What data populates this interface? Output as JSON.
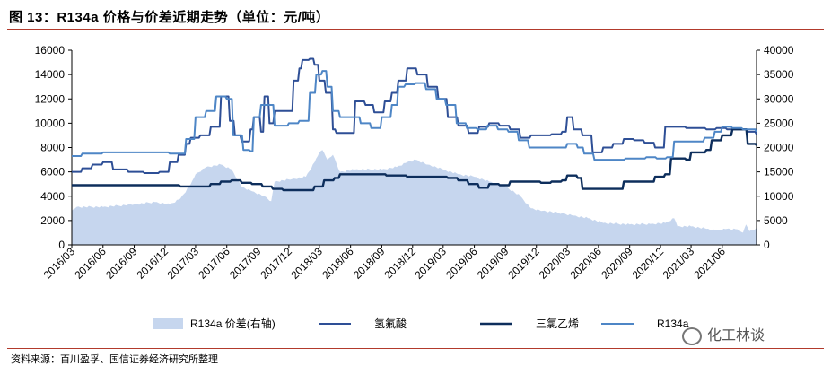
{
  "title": "图 13：R134a 价格与价差近期走势（单位：元/吨）",
  "source": "资料来源：百川盈孚、国信证券经济研究所整理",
  "watermark": "化工林谈",
  "chart_data": {
    "type": "line",
    "left_axis": {
      "ylim": [
        0,
        16000
      ],
      "ticks": [
        "0",
        "2000",
        "4000",
        "6000",
        "8000",
        "10000",
        "12000",
        "14000",
        "16000"
      ]
    },
    "right_axis": {
      "ylim": [
        0,
        40000
      ],
      "ticks": [
        "0",
        "5000",
        "10000",
        "15000",
        "20000",
        "25000",
        "30000",
        "35000",
        "40000"
      ]
    },
    "x_range": [
      "2016-03-01",
      "2021-09-10"
    ],
    "x_ticks": [
      "2016/03",
      "2016/06",
      "2016/09",
      "2016/12",
      "2017/03",
      "2017/06",
      "2017/09",
      "2017/12",
      "2018/03",
      "2018/06",
      "2018/09",
      "2018/12",
      "2019/03",
      "2019/06",
      "2019/09",
      "2019/12",
      "2020/03",
      "2020/06",
      "2020/09",
      "2020/12",
      "2021/03",
      "2021/06"
    ],
    "colors": {
      "spread": "#c6d6ee",
      "hf": "#2e4f96",
      "tce": "#0d2e5c",
      "r134a": "#4e86c6"
    },
    "series": [
      {
        "name": "R134a 价差(右轴)",
        "axis": "right",
        "style": "area",
        "points": [
          [
            "2016-03-01",
            7000
          ],
          [
            "2016-03-15",
            7800
          ],
          [
            "2016-06-01",
            7800
          ],
          [
            "2016-09-01",
            8300
          ],
          [
            "2016-11-01",
            8800
          ],
          [
            "2016-12-15",
            8300
          ],
          [
            "2017-01-15",
            9500
          ],
          [
            "2017-02-15",
            12500
          ],
          [
            "2017-03-01",
            14500
          ],
          [
            "2017-04-01",
            16000
          ],
          [
            "2017-05-15",
            16500
          ],
          [
            "2017-06-15",
            15500
          ],
          [
            "2017-07-15",
            12000
          ],
          [
            "2017-08-15",
            11000
          ],
          [
            "2017-09-20",
            10000
          ],
          [
            "2017-10-10",
            9000
          ],
          [
            "2017-10-20",
            13000
          ],
          [
            "2017-12-10",
            13500
          ],
          [
            "2018-01-20",
            14000
          ],
          [
            "2018-02-15",
            17000
          ],
          [
            "2018-03-01",
            19000
          ],
          [
            "2018-03-10",
            19500
          ],
          [
            "2018-03-25",
            17500
          ],
          [
            "2018-04-10",
            18500
          ],
          [
            "2018-05-01",
            15000
          ],
          [
            "2018-06-15",
            15500
          ],
          [
            "2018-09-01",
            15500
          ],
          [
            "2018-10-15",
            16000
          ],
          [
            "2018-11-15",
            17000
          ],
          [
            "2018-12-10",
            17500
          ],
          [
            "2019-01-15",
            16500
          ],
          [
            "2019-03-01",
            15500
          ],
          [
            "2019-04-15",
            14500
          ],
          [
            "2019-06-01",
            14000
          ],
          [
            "2019-07-15",
            13000
          ],
          [
            "2019-09-01",
            12000
          ],
          [
            "2019-10-15",
            10000
          ],
          [
            "2019-11-15",
            7500
          ],
          [
            "2019-12-20",
            7000
          ],
          [
            "2020-02-15",
            6500
          ],
          [
            "2020-03-20",
            6000
          ],
          [
            "2020-05-01",
            5500
          ],
          [
            "2020-06-15",
            4500
          ],
          [
            "2020-09-01",
            4200
          ],
          [
            "2020-11-01",
            4300
          ],
          [
            "2020-12-15",
            4500
          ],
          [
            "2021-01-10",
            5500
          ],
          [
            "2021-01-20",
            3800
          ],
          [
            "2021-03-01",
            3800
          ],
          [
            "2021-04-15",
            3300
          ],
          [
            "2021-05-15",
            3000
          ],
          [
            "2021-06-15",
            3300
          ],
          [
            "2021-07-15",
            3200
          ],
          [
            "2021-08-01",
            2500
          ],
          [
            "2021-08-10",
            4200
          ],
          [
            "2021-08-20",
            2800
          ],
          [
            "2021-09-10",
            3500
          ]
        ]
      },
      {
        "name": "氢氟酸",
        "axis": "left",
        "style": "line",
        "points": [
          [
            "2016-03-01",
            6000
          ],
          [
            "2016-04-01",
            6300
          ],
          [
            "2016-05-01",
            6600
          ],
          [
            "2016-06-01",
            6800
          ],
          [
            "2016-07-01",
            6200
          ],
          [
            "2016-08-15",
            6000
          ],
          [
            "2016-10-01",
            5900
          ],
          [
            "2016-11-15",
            6000
          ],
          [
            "2016-12-15",
            6800
          ],
          [
            "2017-01-10",
            7400
          ],
          [
            "2017-02-01",
            8300
          ],
          [
            "2017-02-15",
            8800
          ],
          [
            "2017-03-15",
            9000
          ],
          [
            "2017-04-15",
            9700
          ],
          [
            "2017-05-15",
            12200
          ],
          [
            "2017-06-10",
            10200
          ],
          [
            "2017-06-25",
            9000
          ],
          [
            "2017-07-15",
            8500
          ],
          [
            "2017-08-10",
            9500
          ],
          [
            "2017-08-20",
            10500
          ],
          [
            "2017-09-10",
            9300
          ],
          [
            "2017-09-20",
            12200
          ],
          [
            "2017-10-05",
            10000
          ],
          [
            "2017-10-20",
            11000
          ],
          [
            "2017-11-15",
            11000
          ],
          [
            "2017-12-15",
            13500
          ],
          [
            "2018-01-01",
            14500
          ],
          [
            "2018-01-10",
            15200
          ],
          [
            "2018-02-01",
            15300
          ],
          [
            "2018-02-15",
            14800
          ],
          [
            "2018-03-01",
            13500
          ],
          [
            "2018-03-20",
            12500
          ],
          [
            "2018-04-10",
            9500
          ],
          [
            "2018-04-20",
            9200
          ],
          [
            "2018-06-01",
            9200
          ],
          [
            "2018-06-15",
            11800
          ],
          [
            "2018-07-15",
            11500
          ],
          [
            "2018-08-10",
            10900
          ],
          [
            "2018-09-10",
            11800
          ],
          [
            "2018-10-01",
            12500
          ],
          [
            "2018-10-20",
            13500
          ],
          [
            "2018-11-15",
            14500
          ],
          [
            "2018-12-15",
            14000
          ],
          [
            "2019-01-15",
            13000
          ],
          [
            "2019-02-15",
            12000
          ],
          [
            "2019-03-15",
            10500
          ],
          [
            "2019-04-15",
            9800
          ],
          [
            "2019-05-15",
            9200
          ],
          [
            "2019-06-15",
            9700
          ],
          [
            "2019-07-15",
            10000
          ],
          [
            "2019-08-15",
            9800
          ],
          [
            "2019-09-15",
            9500
          ],
          [
            "2019-10-15",
            8800
          ],
          [
            "2019-11-15",
            9000
          ],
          [
            "2019-12-15",
            9000
          ],
          [
            "2020-01-15",
            9100
          ],
          [
            "2020-02-15",
            9300
          ],
          [
            "2020-03-01",
            10500
          ],
          [
            "2020-03-20",
            9500
          ],
          [
            "2020-04-15",
            9000
          ],
          [
            "2020-05-15",
            7600
          ],
          [
            "2020-06-15",
            8000
          ],
          [
            "2020-07-15",
            8300
          ],
          [
            "2020-08-15",
            8700
          ],
          [
            "2020-09-15",
            8600
          ],
          [
            "2020-10-15",
            8400
          ],
          [
            "2020-11-15",
            8000
          ],
          [
            "2020-12-15",
            9700
          ],
          [
            "2021-01-15",
            9700
          ],
          [
            "2021-02-15",
            9600
          ],
          [
            "2021-03-15",
            9600
          ],
          [
            "2021-04-15",
            9500
          ],
          [
            "2021-05-15",
            9600
          ],
          [
            "2021-06-15",
            9500
          ],
          [
            "2021-07-15",
            9500
          ],
          [
            "2021-08-15",
            9300
          ],
          [
            "2021-09-10",
            9100
          ]
        ]
      },
      {
        "name": "三氯乙烯",
        "axis": "left",
        "style": "line",
        "points": [
          [
            "2016-03-01",
            4900
          ],
          [
            "2016-12-15",
            4900
          ],
          [
            "2017-01-15",
            4800
          ],
          [
            "2017-03-15",
            4800
          ],
          [
            "2017-04-15",
            5000
          ],
          [
            "2017-05-15",
            5200
          ],
          [
            "2017-06-15",
            5300
          ],
          [
            "2017-07-15",
            5100
          ],
          [
            "2017-08-15",
            5000
          ],
          [
            "2017-09-15",
            4800
          ],
          [
            "2017-10-15",
            4600
          ],
          [
            "2017-11-15",
            4500
          ],
          [
            "2017-12-15",
            4500
          ],
          [
            "2018-01-15",
            4500
          ],
          [
            "2018-02-15",
            4800
          ],
          [
            "2018-03-15",
            5300
          ],
          [
            "2018-04-15",
            5500
          ],
          [
            "2018-05-01",
            5800
          ],
          [
            "2018-07-15",
            5800
          ],
          [
            "2018-09-15",
            5700
          ],
          [
            "2018-11-15",
            5600
          ],
          [
            "2019-01-15",
            5600
          ],
          [
            "2019-02-15",
            5600
          ],
          [
            "2019-03-15",
            5500
          ],
          [
            "2019-04-15",
            5300
          ],
          [
            "2019-05-15",
            5000
          ],
          [
            "2019-06-15",
            4700
          ],
          [
            "2019-07-15",
            5000
          ],
          [
            "2019-08-15",
            4900
          ],
          [
            "2019-09-15",
            5200
          ],
          [
            "2019-11-15",
            5200
          ],
          [
            "2019-12-15",
            5100
          ],
          [
            "2020-01-15",
            5200
          ],
          [
            "2020-02-15",
            5300
          ],
          [
            "2020-03-01",
            5700
          ],
          [
            "2020-04-01",
            5500
          ],
          [
            "2020-04-15",
            4600
          ],
          [
            "2020-08-01",
            4600
          ],
          [
            "2020-08-15",
            5200
          ],
          [
            "2020-10-15",
            5200
          ],
          [
            "2020-11-15",
            5600
          ],
          [
            "2020-12-15",
            5800
          ],
          [
            "2021-01-01",
            7100
          ],
          [
            "2021-02-15",
            7000
          ],
          [
            "2021-03-01",
            7600
          ],
          [
            "2021-04-15",
            7800
          ],
          [
            "2021-05-01",
            8600
          ],
          [
            "2021-06-01",
            9000
          ],
          [
            "2021-07-01",
            9500
          ],
          [
            "2021-08-01",
            9500
          ],
          [
            "2021-08-15",
            8300
          ],
          [
            "2021-09-10",
            8200
          ]
        ]
      },
      {
        "name": "R134a",
        "axis": "left",
        "style": "line",
        "points": [
          [
            "2016-03-01",
            7300
          ],
          [
            "2016-04-01",
            7500
          ],
          [
            "2016-06-01",
            7600
          ],
          [
            "2016-08-01",
            7600
          ],
          [
            "2016-12-15",
            7500
          ],
          [
            "2017-01-15",
            7500
          ],
          [
            "2017-02-01",
            8700
          ],
          [
            "2017-03-01",
            10500
          ],
          [
            "2017-04-01",
            11000
          ],
          [
            "2017-05-01",
            12200
          ],
          [
            "2017-06-01",
            12000
          ],
          [
            "2017-06-20",
            9000
          ],
          [
            "2017-07-20",
            7800
          ],
          [
            "2017-08-10",
            7700
          ],
          [
            "2017-08-20",
            10500
          ],
          [
            "2017-09-10",
            11500
          ],
          [
            "2017-10-20",
            9800
          ],
          [
            "2017-12-01",
            10000
          ],
          [
            "2018-01-01",
            10200
          ],
          [
            "2018-02-01",
            12500
          ],
          [
            "2018-02-20",
            14000
          ],
          [
            "2018-03-10",
            14300
          ],
          [
            "2018-03-25",
            13000
          ],
          [
            "2018-04-10",
            11000
          ],
          [
            "2018-05-01",
            10500
          ],
          [
            "2018-06-01",
            10500
          ],
          [
            "2018-07-01",
            10000
          ],
          [
            "2018-08-01",
            9600
          ],
          [
            "2018-09-01",
            10500
          ],
          [
            "2018-10-01",
            11500
          ],
          [
            "2018-10-20",
            13000
          ],
          [
            "2018-11-10",
            13200
          ],
          [
            "2018-12-10",
            13300
          ],
          [
            "2019-01-10",
            12800
          ],
          [
            "2019-02-10",
            12000
          ],
          [
            "2019-03-10",
            11500
          ],
          [
            "2019-04-10",
            10000
          ],
          [
            "2019-05-10",
            9600
          ],
          [
            "2019-06-10",
            9500
          ],
          [
            "2019-07-10",
            9800
          ],
          [
            "2019-08-10",
            9500
          ],
          [
            "2019-09-10",
            9300
          ],
          [
            "2019-10-10",
            8600
          ],
          [
            "2019-11-10",
            8000
          ],
          [
            "2019-12-10",
            8000
          ],
          [
            "2020-02-10",
            8000
          ],
          [
            "2020-03-01",
            8300
          ],
          [
            "2020-04-01",
            8000
          ],
          [
            "2020-04-20",
            7500
          ],
          [
            "2020-05-20",
            7000
          ],
          [
            "2020-06-20",
            7000
          ],
          [
            "2020-08-20",
            7100
          ],
          [
            "2020-10-20",
            7200
          ],
          [
            "2020-11-20",
            7100
          ],
          [
            "2020-12-20",
            7200
          ],
          [
            "2021-01-10",
            8500
          ],
          [
            "2021-02-10",
            8500
          ],
          [
            "2021-03-10",
            8500
          ],
          [
            "2021-04-10",
            8800
          ],
          [
            "2021-05-10",
            9300
          ],
          [
            "2021-06-01",
            9700
          ],
          [
            "2021-07-01",
            9600
          ],
          [
            "2021-08-01",
            9500
          ],
          [
            "2021-09-10",
            9300
          ]
        ]
      }
    ]
  }
}
